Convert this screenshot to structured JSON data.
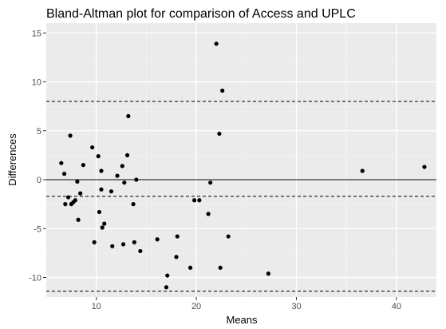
{
  "chart_data": {
    "type": "scatter",
    "title": "Bland-Altman plot for comparison of Access and UPLC",
    "xlabel": "Means",
    "ylabel": "Differences",
    "xlim": [
      5,
      44
    ],
    "ylim": [
      -12,
      16
    ],
    "x_ticks": [
      10,
      20,
      30,
      40
    ],
    "y_ticks": [
      -10,
      -5,
      0,
      5,
      10,
      15
    ],
    "x_tick_labels": [
      "10",
      "20",
      "30",
      "40"
    ],
    "y_tick_labels": [
      "-10",
      "-5",
      "0",
      "5",
      "10",
      "15"
    ],
    "grid": true,
    "reference_lines": [
      {
        "y": 0,
        "style": "solid"
      },
      {
        "y": 8,
        "style": "dashed"
      },
      {
        "y": -1.7,
        "style": "dashed"
      },
      {
        "y": -11.4,
        "style": "dashed"
      }
    ],
    "points": [
      {
        "x": 6.5,
        "y": 1.7
      },
      {
        "x": 6.8,
        "y": 0.6
      },
      {
        "x": 6.9,
        "y": -2.5
      },
      {
        "x": 7.2,
        "y": -1.8
      },
      {
        "x": 7.4,
        "y": 4.5
      },
      {
        "x": 7.5,
        "y": -2.5
      },
      {
        "x": 7.7,
        "y": -2.3
      },
      {
        "x": 7.9,
        "y": -2.1
      },
      {
        "x": 8.1,
        "y": -0.2
      },
      {
        "x": 8.2,
        "y": -4.1
      },
      {
        "x": 8.4,
        "y": -1.4
      },
      {
        "x": 8.7,
        "y": 1.5
      },
      {
        "x": 9.6,
        "y": 3.3
      },
      {
        "x": 9.8,
        "y": -6.4
      },
      {
        "x": 10.2,
        "y": 2.4
      },
      {
        "x": 10.3,
        "y": -3.3
      },
      {
        "x": 10.5,
        "y": 0.9
      },
      {
        "x": 10.5,
        "y": -1.0
      },
      {
        "x": 10.6,
        "y": -4.9
      },
      {
        "x": 10.8,
        "y": -4.5
      },
      {
        "x": 11.5,
        "y": -1.2
      },
      {
        "x": 11.6,
        "y": -6.8
      },
      {
        "x": 12.1,
        "y": 0.4
      },
      {
        "x": 12.6,
        "y": 1.4
      },
      {
        "x": 12.7,
        "y": -6.6
      },
      {
        "x": 12.8,
        "y": -0.3
      },
      {
        "x": 13.1,
        "y": 2.5
      },
      {
        "x": 13.2,
        "y": 6.5
      },
      {
        "x": 13.7,
        "y": -2.5
      },
      {
        "x": 13.8,
        "y": -6.4
      },
      {
        "x": 14.0,
        "y": 0.0
      },
      {
        "x": 14.4,
        "y": -7.3
      },
      {
        "x": 16.1,
        "y": -6.1
      },
      {
        "x": 17.0,
        "y": -11.0
      },
      {
        "x": 17.1,
        "y": -9.8
      },
      {
        "x": 18.0,
        "y": -7.9
      },
      {
        "x": 18.1,
        "y": -5.8
      },
      {
        "x": 19.4,
        "y": -9.0
      },
      {
        "x": 19.8,
        "y": -2.1
      },
      {
        "x": 20.3,
        "y": -2.1
      },
      {
        "x": 21.2,
        "y": -3.5
      },
      {
        "x": 21.4,
        "y": -0.3
      },
      {
        "x": 22.0,
        "y": 13.9
      },
      {
        "x": 22.3,
        "y": 4.7
      },
      {
        "x": 22.4,
        "y": -9.0
      },
      {
        "x": 22.6,
        "y": 9.1
      },
      {
        "x": 23.2,
        "y": -5.8
      },
      {
        "x": 27.2,
        "y": -9.6
      },
      {
        "x": 36.6,
        "y": 0.9
      },
      {
        "x": 42.8,
        "y": 1.3
      }
    ],
    "colors": {
      "panel_background": "#ebebeb",
      "major_grid": "#ffffff",
      "minor_grid": "#f4f4f4",
      "points": "#000000",
      "reference_lines": "#000000"
    }
  }
}
